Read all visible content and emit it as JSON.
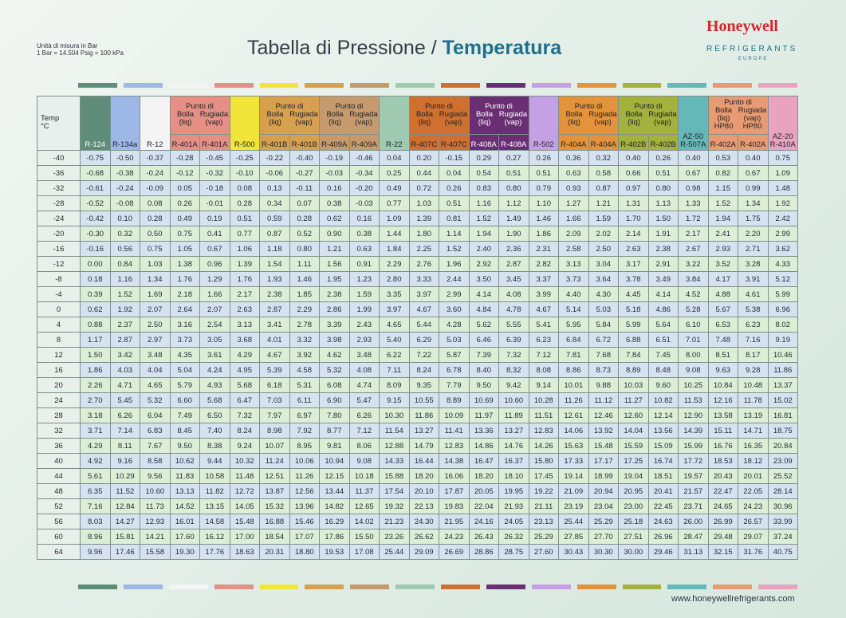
{
  "units_note": [
    "Unità di misura in Bar",
    "1 Bar = 14.504 Psig = 100 kPa"
  ],
  "title": {
    "part1": "Tabella di Pressione / ",
    "part2": "Temperatura"
  },
  "brand": {
    "name": "Honeywell",
    "sub": "REFRIGERANTS",
    "sub2": "EUROPE"
  },
  "footer_url": "www.honeywellrefrigerants.com",
  "stripe_colors": [
    "#5e8d7a",
    "#9db8e6",
    "#f4f4f4",
    "#e58f85",
    "#f2e53a",
    "#d6a04e",
    "#c69a6c",
    "#9fc9b0",
    "#cf7030",
    "#6a2f73",
    "#c6a0e4",
    "#e4933b",
    "#a4b13d",
    "#65b8b8",
    "#e89a72",
    "#e9a3c0"
  ],
  "table": {
    "temp_label": "Temp",
    "temp_unit": "°C",
    "group_bolla": "Punto di",
    "bolla_liq": "Bolla (liq)",
    "rugiada_vap": "Rugiada (vap)",
    "columns": [
      {
        "label": "R-124",
        "color": "#5e8d7a",
        "dark": true
      },
      {
        "label": "R-134a",
        "color": "#9db8e6"
      },
      {
        "label": "R-12",
        "color": "#f4f4f4"
      },
      {
        "label": "R-401A",
        "color": "#e58f85",
        "group": 0,
        "sub": "bolla"
      },
      {
        "label": "R-401A",
        "color": "#e58f85",
        "group": 0,
        "sub": "rugiada"
      },
      {
        "label": "R-500",
        "color": "#f2e53a"
      },
      {
        "label": "R-401B",
        "color": "#d6a04e",
        "group": 1,
        "sub": "bolla"
      },
      {
        "label": "R-401B",
        "color": "#d6a04e",
        "group": 1,
        "sub": "rugiada"
      },
      {
        "label": "R-409A",
        "color": "#c69a6c",
        "group": 2,
        "sub": "bolla"
      },
      {
        "label": "R-409A",
        "color": "#c69a6c",
        "group": 2,
        "sub": "rugiada"
      },
      {
        "label": "R-22",
        "color": "#9fc9b0"
      },
      {
        "label": "R-407C",
        "color": "#cf7030",
        "group": 3,
        "sub": "bolla"
      },
      {
        "label": "R-407C",
        "color": "#cf7030",
        "group": 3,
        "sub": "rugiada"
      },
      {
        "label": "R-408A",
        "color": "#6a2f73",
        "group": 4,
        "sub": "bolla",
        "dark": true
      },
      {
        "label": "R-408A",
        "color": "#6a2f73",
        "group": 4,
        "sub": "rugiada",
        "dark": true
      },
      {
        "label": "R-502",
        "color": "#c6a0e4"
      },
      {
        "label": "R-404A",
        "color": "#e4933b",
        "group": 5,
        "sub": "bolla"
      },
      {
        "label": "R-404A",
        "color": "#e4933b",
        "group": 5,
        "sub": "rugiada"
      },
      {
        "label": "R-402B",
        "color": "#a4b13d",
        "group": 6,
        "sub": "bolla"
      },
      {
        "label": "R-402B",
        "color": "#a4b13d",
        "group": 6,
        "sub": "rugiada"
      },
      {
        "label": "AZ-50",
        "sub_label": "R-507A",
        "color": "#65b8b8"
      },
      {
        "label": "HP80",
        "sub_label": "R-402A",
        "color": "#e89a72",
        "group": 7,
        "sub": "bolla"
      },
      {
        "label": "HP80",
        "sub_label": "R-402A",
        "color": "#e89a72",
        "group": 7,
        "sub": "rugiada"
      },
      {
        "label": "AZ-20",
        "sub_label": "R-410A",
        "color": "#e9a3c0"
      }
    ],
    "rows": [
      {
        "t": "-40",
        "v": [
          "-0.75",
          "-0.50",
          "-0.37",
          "-0.28",
          "-0.45",
          "-0.25",
          "-0.22",
          "-0.40",
          "-0.19",
          "-0.46",
          "0.04",
          "0.20",
          "-0.15",
          "0.29",
          "0.27",
          "0.26",
          "0.36",
          "0.32",
          "0.40",
          "0.26",
          "0.40",
          "0.53",
          "0.40",
          "0.75"
        ]
      },
      {
        "t": "-36",
        "v": [
          "-0.68",
          "-0.38",
          "-0.24",
          "-0.12",
          "-0.32",
          "-0.10",
          "-0.06",
          "-0.27",
          "-0.03",
          "-0.34",
          "0.25",
          "0.44",
          "0.04",
          "0.54",
          "0.51",
          "0.51",
          "0.63",
          "0.58",
          "0.66",
          "0.51",
          "0.67",
          "0.82",
          "0.67",
          "1.09"
        ]
      },
      {
        "t": "-32",
        "v": [
          "-0.61",
          "-0.24",
          "-0.09",
          "0.05",
          "-0.18",
          "0.08",
          "0.13",
          "-0.11",
          "0.16",
          "-0.20",
          "0.49",
          "0.72",
          "0.26",
          "0.83",
          "0.80",
          "0.79",
          "0.93",
          "0.87",
          "0.97",
          "0.80",
          "0.98",
          "1.15",
          "0.99",
          "1.48"
        ]
      },
      {
        "t": "-28",
        "v": [
          "-0.52",
          "-0.08",
          "0.08",
          "0.26",
          "-0.01",
          "0.28",
          "0.34",
          "0.07",
          "0.38",
          "-0.03",
          "0.77",
          "1.03",
          "0.51",
          "1.16",
          "1.12",
          "1.10",
          "1.27",
          "1.21",
          "1.31",
          "1.13",
          "1.33",
          "1.52",
          "1.34",
          "1.92"
        ]
      },
      {
        "t": "-24",
        "v": [
          "-0.42",
          "0.10",
          "0.28",
          "0.49",
          "0.19",
          "0.51",
          "0.59",
          "0.28",
          "0.62",
          "0.16",
          "1.09",
          "1.39",
          "0.81",
          "1.52",
          "1.49",
          "1.46",
          "1.66",
          "1.59",
          "1.70",
          "1.50",
          "1.72",
          "1.94",
          "1.75",
          "2.42"
        ]
      },
      {
        "t": "-20",
        "v": [
          "-0.30",
          "0.32",
          "0.50",
          "0.75",
          "0.41",
          "0.77",
          "0.87",
          "0.52",
          "0.90",
          "0.38",
          "1.44",
          "1.80",
          "1.14",
          "1.94",
          "1.90",
          "1.86",
          "2.09",
          "2.02",
          "2.14",
          "1.91",
          "2.17",
          "2.41",
          "2.20",
          "2.99"
        ]
      },
      {
        "t": "-16",
        "v": [
          "-0.16",
          "0.56",
          "0.75",
          "1.05",
          "0.67",
          "1.06",
          "1.18",
          "0.80",
          "1.21",
          "0.63",
          "1.84",
          "2.25",
          "1.52",
          "2.40",
          "2.36",
          "2.31",
          "2.58",
          "2.50",
          "2.63",
          "2.38",
          "2.67",
          "2.93",
          "2.71",
          "3.62"
        ]
      },
      {
        "t": "-12",
        "v": [
          "0.00",
          "0.84",
          "1.03",
          "1.38",
          "0.96",
          "1.39",
          "1.54",
          "1.11",
          "1.56",
          "0.91",
          "2.29",
          "2.76",
          "1.96",
          "2.92",
          "2.87",
          "2.82",
          "3.13",
          "3.04",
          "3.17",
          "2.91",
          "3.22",
          "3.52",
          "3.28",
          "4.33"
        ]
      },
      {
        "t": "-8",
        "v": [
          "0.18",
          "1.16",
          "1.34",
          "1.76",
          "1.29",
          "1.76",
          "1.93",
          "1.46",
          "1.95",
          "1.23",
          "2.80",
          "3.33",
          "2.44",
          "3.50",
          "3.45",
          "3.37",
          "3.73",
          "3.64",
          "3.78",
          "3.49",
          "3.84",
          "4.17",
          "3.91",
          "5.12"
        ]
      },
      {
        "t": "-4",
        "v": [
          "0.39",
          "1.52",
          "1.69",
          "2.18",
          "1.66",
          "2.17",
          "2.38",
          "1.85",
          "2.38",
          "1.59",
          "3.35",
          "3.97",
          "2.99",
          "4.14",
          "4.08",
          "3.99",
          "4.40",
          "4.30",
          "4.45",
          "4.14",
          "4.52",
          "4.88",
          "4.61",
          "5.99"
        ]
      },
      {
        "t": "0",
        "v": [
          "0.62",
          "1.92",
          "2.07",
          "2.64",
          "2.07",
          "2.63",
          "2.87",
          "2.29",
          "2.86",
          "1.99",
          "3.97",
          "4.67",
          "3.60",
          "4.84",
          "4.78",
          "4.67",
          "5.14",
          "5.03",
          "5.18",
          "4.86",
          "5.28",
          "5.67",
          "5.38",
          "6.96"
        ]
      },
      {
        "t": "4",
        "v": [
          "0.88",
          "2.37",
          "2.50",
          "3.16",
          "2.54",
          "3.13",
          "3.41",
          "2.78",
          "3.39",
          "2.43",
          "4.65",
          "5.44",
          "4.28",
          "5.62",
          "5.55",
          "5.41",
          "5.95",
          "5.84",
          "5.99",
          "5.64",
          "6.10",
          "6.53",
          "6.23",
          "8.02"
        ]
      },
      {
        "t": "8",
        "v": [
          "1.17",
          "2.87",
          "2.97",
          "3.73",
          "3.05",
          "3.68",
          "4.01",
          "3.32",
          "3.98",
          "2.93",
          "5.40",
          "6.29",
          "5.03",
          "6.46",
          "6.39",
          "6.23",
          "6.84",
          "6.72",
          "6.88",
          "6.51",
          "7.01",
          "7.48",
          "7.16",
          "9.19"
        ]
      },
      {
        "t": "12",
        "v": [
          "1.50",
          "3.42",
          "3.48",
          "4.35",
          "3.61",
          "4.29",
          "4.67",
          "3.92",
          "4.62",
          "3.48",
          "6.22",
          "7.22",
          "5.87",
          "7.39",
          "7.32",
          "7.12",
          "7.81",
          "7.68",
          "7.84",
          "7.45",
          "8.00",
          "8.51",
          "8.17",
          "10.46"
        ]
      },
      {
        "t": "16",
        "v": [
          "1.86",
          "4.03",
          "4.04",
          "5.04",
          "4.24",
          "4.95",
          "5.39",
          "4.58",
          "5.32",
          "4.08",
          "7.11",
          "8.24",
          "6.78",
          "8.40",
          "8.32",
          "8.08",
          "8.86",
          "8.73",
          "8.89",
          "8.48",
          "9.08",
          "9.63",
          "9.28",
          "11.86"
        ]
      },
      {
        "t": "20",
        "v": [
          "2.26",
          "4.71",
          "4.65",
          "5.79",
          "4.93",
          "5.68",
          "6.18",
          "5.31",
          "6.08",
          "4.74",
          "8.09",
          "9.35",
          "7.79",
          "9.50",
          "9.42",
          "9.14",
          "10.01",
          "9.88",
          "10.03",
          "9.60",
          "10.25",
          "10.84",
          "10.48",
          "13.37"
        ]
      },
      {
        "t": "24",
        "v": [
          "2.70",
          "5.45",
          "5.32",
          "6.60",
          "5.68",
          "6.47",
          "7.03",
          "6.11",
          "6.90",
          "5.47",
          "9.15",
          "10.55",
          "8.89",
          "10.69",
          "10.60",
          "10.28",
          "11.26",
          "11.12",
          "11.27",
          "10.82",
          "11.53",
          "12.16",
          "11.78",
          "15.02"
        ]
      },
      {
        "t": "28",
        "v": [
          "3.18",
          "6.26",
          "6.04",
          "7.49",
          "6.50",
          "7.32",
          "7.97",
          "6.97",
          "7.80",
          "6.26",
          "10.30",
          "11.86",
          "10.09",
          "11.97",
          "11.89",
          "11.51",
          "12.61",
          "12.46",
          "12.60",
          "12.14",
          "12.90",
          "13.58",
          "13.19",
          "16.81"
        ]
      },
      {
        "t": "32",
        "v": [
          "3.71",
          "7.14",
          "6.83",
          "8.45",
          "7.40",
          "8.24",
          "8.98",
          "7.92",
          "8.77",
          "7.12",
          "11.54",
          "13.27",
          "11.41",
          "13.36",
          "13.27",
          "12.83",
          "14.06",
          "13.92",
          "14.04",
          "13.56",
          "14.39",
          "15.11",
          "14.71",
          "18.75"
        ]
      },
      {
        "t": "36",
        "v": [
          "4.29",
          "8.11",
          "7.67",
          "9.50",
          "8.38",
          "9.24",
          "10.07",
          "8.95",
          "9.81",
          "8.06",
          "12.88",
          "14.79",
          "12.83",
          "14.86",
          "14.76",
          "14.26",
          "15.63",
          "15.48",
          "15.59",
          "15.09",
          "15.99",
          "16.76",
          "16.35",
          "20.84"
        ]
      },
      {
        "t": "40",
        "v": [
          "4.92",
          "9.16",
          "8.58",
          "10.62",
          "9.44",
          "10.32",
          "11.24",
          "10.06",
          "10.94",
          "9.08",
          "14.33",
          "16.44",
          "14.38",
          "16.47",
          "16.37",
          "15.80",
          "17.33",
          "17.17",
          "17.25",
          "16.74",
          "17.72",
          "18.53",
          "18.12",
          "23.09"
        ]
      },
      {
        "t": "44",
        "v": [
          "5.61",
          "10.29",
          "9.56",
          "11.83",
          "10.58",
          "11.48",
          "12.51",
          "11.26",
          "12.15",
          "10.18",
          "15.88",
          "18.20",
          "16.06",
          "18.20",
          "18.10",
          "17.45",
          "19.14",
          "18.99",
          "19.04",
          "18.51",
          "19.57",
          "20.43",
          "20.01",
          "25.52"
        ]
      },
      {
        "t": "48",
        "v": [
          "6.35",
          "11.52",
          "10.60",
          "13.13",
          "11.82",
          "12.72",
          "13.87",
          "12.56",
          "13.44",
          "11.37",
          "17.54",
          "20.10",
          "17.87",
          "20.05",
          "19.95",
          "19.22",
          "21.09",
          "20.94",
          "20.95",
          "20.41",
          "21.57",
          "22.47",
          "22.05",
          "28.14"
        ]
      },
      {
        "t": "52",
        "v": [
          "7.16",
          "12.84",
          "11.73",
          "14.52",
          "13.15",
          "14.05",
          "15.32",
          "13.96",
          "14.82",
          "12.65",
          "19.32",
          "22.13",
          "19.83",
          "22.04",
          "21.93",
          "21.11",
          "23.19",
          "23.04",
          "23.00",
          "22.45",
          "23.71",
          "24.65",
          "24.23",
          "30.96"
        ]
      },
      {
        "t": "56",
        "v": [
          "8.03",
          "14.27",
          "12.93",
          "16.01",
          "14.58",
          "15.48",
          "16.88",
          "15.46",
          "16.29",
          "14.02",
          "21.23",
          "24.30",
          "21.95",
          "24.16",
          "24.05",
          "23.13",
          "25.44",
          "25.29",
          "25.18",
          "24.63",
          "26.00",
          "26.99",
          "26.57",
          "33.99"
        ]
      },
      {
        "t": "60",
        "v": [
          "8.96",
          "15.81",
          "14.21",
          "17.60",
          "16.12",
          "17.00",
          "18.54",
          "17.07",
          "17.86",
          "15.50",
          "23.26",
          "26.62",
          "24.23",
          "26.43",
          "26.32",
          "25.29",
          "27.85",
          "27.70",
          "27.51",
          "26.96",
          "28.47",
          "29.48",
          "29.07",
          "37.24"
        ]
      },
      {
        "t": "64",
        "v": [
          "9.96",
          "17.46",
          "15.58",
          "19.30",
          "17.76",
          "18.63",
          "20.31",
          "18.80",
          "19.53",
          "17.08",
          "25.44",
          "29.09",
          "26.69",
          "28.86",
          "28.75",
          "27.60",
          "30.43",
          "30.30",
          "30.00",
          "29.46",
          "31.13",
          "32.15",
          "31.76",
          "40.75"
        ]
      }
    ]
  }
}
